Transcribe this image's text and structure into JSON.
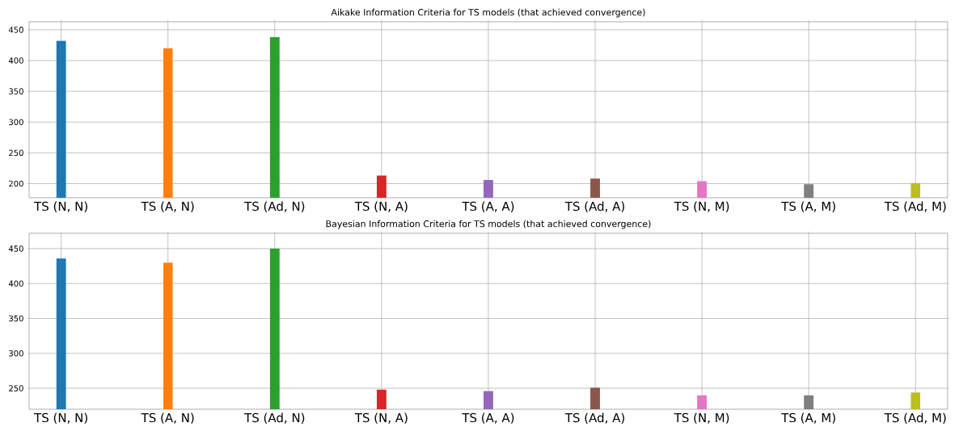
{
  "chart_data": [
    {
      "type": "bar",
      "title": "Aikake Information Criteria for TS models (that achieved convergence)",
      "categories": [
        "TS (N, N)",
        "TS (A, N)",
        "TS (Ad, N)",
        "TS (N, A)",
        "TS (A, A)",
        "TS (Ad, A)",
        "TS (N, M)",
        "TS (A, M)",
        "TS (Ad, M)"
      ],
      "values": [
        432,
        420,
        438,
        213,
        206,
        208,
        204,
        199,
        201
      ],
      "colors": [
        "#1f77b4",
        "#ff7f0e",
        "#2ca02c",
        "#d62728",
        "#9467bd",
        "#8c564b",
        "#e377c2",
        "#7f7f7f",
        "#bcbd22"
      ],
      "ylim": [
        177,
        463
      ],
      "yticks": [
        200,
        250,
        300,
        350,
        400,
        450
      ],
      "grid": true
    },
    {
      "type": "bar",
      "title": "Bayesian Information Criteria for TS models (that achieved convergence)",
      "categories": [
        "TS (N, N)",
        "TS (A, N)",
        "TS (Ad, N)",
        "TS (N, A)",
        "TS (A, A)",
        "TS (Ad, A)",
        "TS (N, M)",
        "TS (A, M)",
        "TS (Ad, M)"
      ],
      "values": [
        436,
        430,
        450,
        248,
        246,
        251,
        240,
        240,
        244
      ],
      "colors": [
        "#1f77b4",
        "#ff7f0e",
        "#2ca02c",
        "#d62728",
        "#9467bd",
        "#8c564b",
        "#e377c2",
        "#7f7f7f",
        "#bcbd22"
      ],
      "ylim": [
        220,
        472
      ],
      "yticks": [
        250,
        300,
        350,
        400,
        450
      ],
      "grid": true
    }
  ]
}
